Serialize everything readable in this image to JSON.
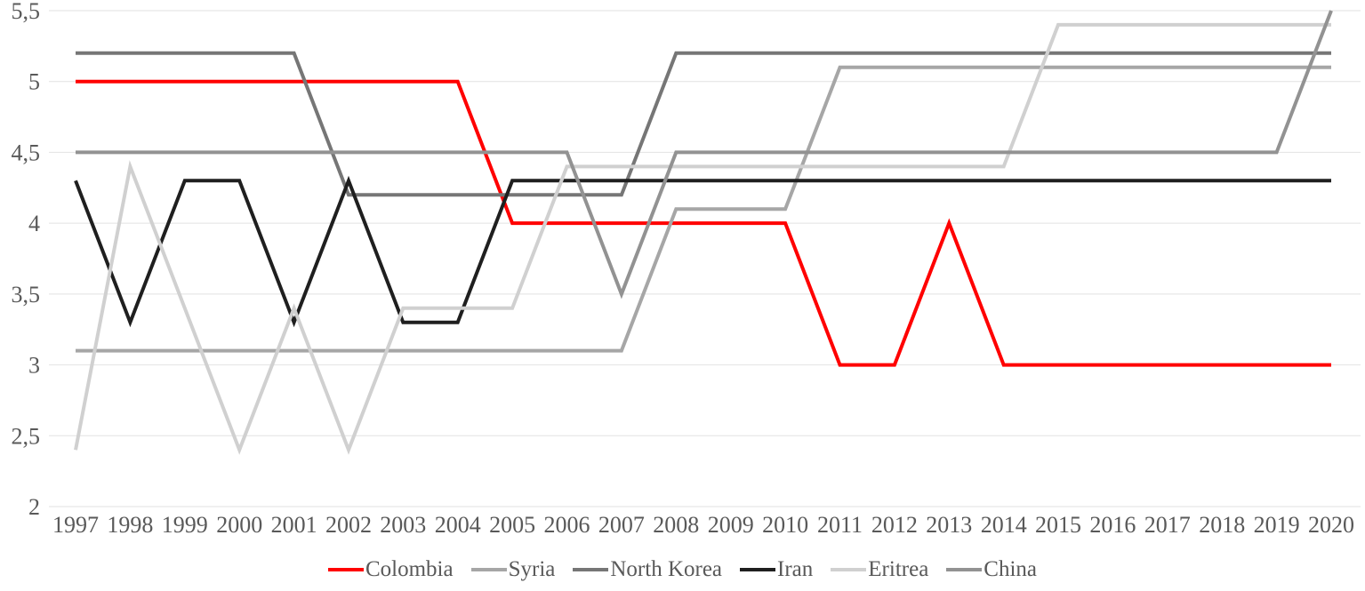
{
  "chart_data": {
    "type": "line",
    "title": "",
    "xlabel": "",
    "ylabel": "",
    "grid": true,
    "legend_position": "bottom",
    "ylim": [
      2,
      5.5
    ],
    "y_ticks": [
      2,
      2.5,
      3,
      3.5,
      4,
      4.5,
      5,
      5.5
    ],
    "y_tick_labels": [
      "2",
      "2,5",
      "3",
      "3,5",
      "4",
      "4,5",
      "5",
      "5,5"
    ],
    "x": [
      1997,
      1998,
      1999,
      2000,
      2001,
      2002,
      2003,
      2004,
      2005,
      2006,
      2007,
      2008,
      2009,
      2010,
      2011,
      2012,
      2013,
      2014,
      2015,
      2016,
      2017,
      2018,
      2019,
      2020
    ],
    "series": [
      {
        "name": "Colombia",
        "color": "#ff0000",
        "values": [
          5,
          5,
          5,
          5,
          5,
          5,
          5,
          5,
          4,
          4,
          4,
          4,
          4,
          4,
          3,
          3,
          4,
          3,
          3,
          3,
          3,
          3,
          3,
          3
        ]
      },
      {
        "name": "Syria",
        "color": "#a6a6a6",
        "values": [
          3.1,
          3.1,
          3.1,
          3.1,
          3.1,
          3.1,
          3.1,
          3.1,
          3.1,
          3.1,
          3.1,
          4.1,
          4.1,
          4.1,
          5.1,
          5.1,
          5.1,
          5.1,
          5.1,
          5.1,
          5.1,
          5.1,
          5.1,
          5.1
        ]
      },
      {
        "name": "North Korea",
        "color": "#767676",
        "values": [
          5.2,
          5.2,
          5.2,
          5.2,
          5.2,
          4.2,
          4.2,
          4.2,
          4.2,
          4.2,
          4.2,
          5.2,
          5.2,
          5.2,
          5.2,
          5.2,
          5.2,
          5.2,
          5.2,
          5.2,
          5.2,
          5.2,
          5.2,
          5.2
        ]
      },
      {
        "name": "Iran",
        "color": "#1f1f1f",
        "values": [
          4.3,
          3.3,
          4.3,
          4.3,
          3.3,
          4.3,
          3.3,
          3.3,
          4.3,
          4.3,
          4.3,
          4.3,
          4.3,
          4.3,
          4.3,
          4.3,
          4.3,
          4.3,
          4.3,
          4.3,
          4.3,
          4.3,
          4.3,
          4.3
        ]
      },
      {
        "name": "Eritrea",
        "color": "#d0d0d0",
        "values": [
          2.4,
          4.4,
          3.4,
          2.4,
          3.4,
          2.4,
          3.4,
          3.4,
          3.4,
          4.4,
          4.4,
          4.4,
          4.4,
          4.4,
          4.4,
          4.4,
          4.4,
          4.4,
          5.4,
          5.4,
          5.4,
          5.4,
          5.4,
          5.4
        ]
      },
      {
        "name": "China",
        "color": "#929292",
        "values": [
          4.5,
          4.5,
          4.5,
          4.5,
          4.5,
          4.5,
          4.5,
          4.5,
          4.5,
          4.5,
          3.5,
          4.5,
          4.5,
          4.5,
          4.5,
          4.5,
          4.5,
          4.5,
          4.5,
          4.5,
          4.5,
          4.5,
          4.5,
          5.5
        ]
      }
    ]
  }
}
